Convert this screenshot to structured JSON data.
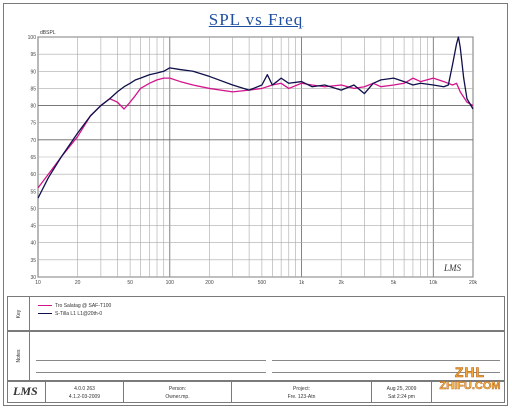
{
  "title": "SPL vs Freq",
  "unit_label": "dBSPL",
  "chart_logo": "LMS",
  "chart_data": {
    "type": "line",
    "xscale": "log",
    "xlim": [
      10,
      20000
    ],
    "ylim": [
      30,
      100
    ],
    "grid": true,
    "x_tick_labels": [
      {
        "value": 10,
        "label": "10"
      },
      {
        "value": 20,
        "label": "20"
      },
      {
        "value": 50,
        "label": "50"
      },
      {
        "value": 100,
        "label": "100"
      },
      {
        "value": 200,
        "label": "200"
      },
      {
        "value": 500,
        "label": "500"
      },
      {
        "value": 1000,
        "label": "1k"
      },
      {
        "value": 2000,
        "label": "2k"
      },
      {
        "value": 5000,
        "label": "5k"
      },
      {
        "value": 10000,
        "label": "10k"
      },
      {
        "value": 20000,
        "label": "20k"
      }
    ],
    "y_ticks": [
      30,
      35,
      40,
      45,
      50,
      55,
      60,
      65,
      70,
      75,
      80,
      85,
      90,
      95,
      100
    ],
    "series": [
      {
        "color": "#d4148c",
        "x": [
          10,
          12,
          15,
          20,
          25,
          30,
          35,
          40,
          45,
          50,
          55,
          60,
          70,
          80,
          90,
          100,
          120,
          150,
          200,
          300,
          400,
          500,
          600,
          700,
          800,
          1000,
          1200,
          1500,
          2000,
          2500,
          3000,
          3500,
          4000,
          5000,
          6000,
          7000,
          8000,
          10000,
          12000,
          14000,
          15000,
          16000,
          18000,
          20000
        ],
        "y": [
          56,
          60,
          65,
          71,
          77,
          80,
          82,
          81,
          79,
          81,
          83,
          85,
          86.5,
          87.5,
          88,
          88,
          87,
          86,
          85,
          84,
          84.5,
          85,
          86,
          86.5,
          85,
          86.5,
          86,
          85.5,
          86,
          85,
          85.5,
          86.5,
          85.5,
          86,
          86.5,
          88,
          87,
          88,
          87,
          86,
          86.5,
          84,
          81,
          80
        ]
      },
      {
        "color": "#10104a",
        "x": [
          10,
          12,
          15,
          20,
          25,
          30,
          35,
          40,
          45,
          50,
          55,
          60,
          70,
          80,
          90,
          100,
          120,
          150,
          200,
          300,
          400,
          500,
          550,
          600,
          650,
          700,
          800,
          1000,
          1200,
          1500,
          2000,
          2500,
          3000,
          3500,
          4000,
          5000,
          6000,
          7000,
          8000,
          10000,
          12000,
          13000,
          14000,
          15000,
          15500,
          16000,
          17000,
          18000,
          20000
        ],
        "y": [
          53,
          59,
          65,
          72,
          77,
          80,
          82,
          84,
          85.5,
          86.5,
          87.5,
          88,
          89,
          89.5,
          90,
          91,
          90.5,
          90,
          88.5,
          86,
          84.5,
          86,
          89,
          86,
          87,
          88,
          86.5,
          87,
          85.5,
          86,
          84.5,
          86,
          83.5,
          86.5,
          87.5,
          88,
          87,
          86,
          86.5,
          86,
          85.5,
          86,
          92,
          98,
          100,
          97,
          88,
          82,
          79
        ]
      }
    ]
  },
  "legend": {
    "row_label": "Key",
    "items": [
      {
        "text": "Tro Salatag @ SAF-T100",
        "color": "#d4148c"
      },
      {
        "text": "S-Tilla L1 L1@20th-0",
        "color": "#10104a"
      }
    ]
  },
  "notes": {
    "row_label": "Notes"
  },
  "footer": {
    "logo": "LMS",
    "info": [
      "4.0.0 263",
      "4.1.2-03-2009"
    ],
    "person_label": "Person:",
    "person_value": "Owner.mp.",
    "project_label": "Project:",
    "project_value": "Fre. 123-Atn",
    "date": "Aug 25, 2009",
    "time": "Sat 2:24 pm"
  },
  "watermark": {
    "line1": "ZHL",
    "line2": "ZHIFU.COM"
  }
}
